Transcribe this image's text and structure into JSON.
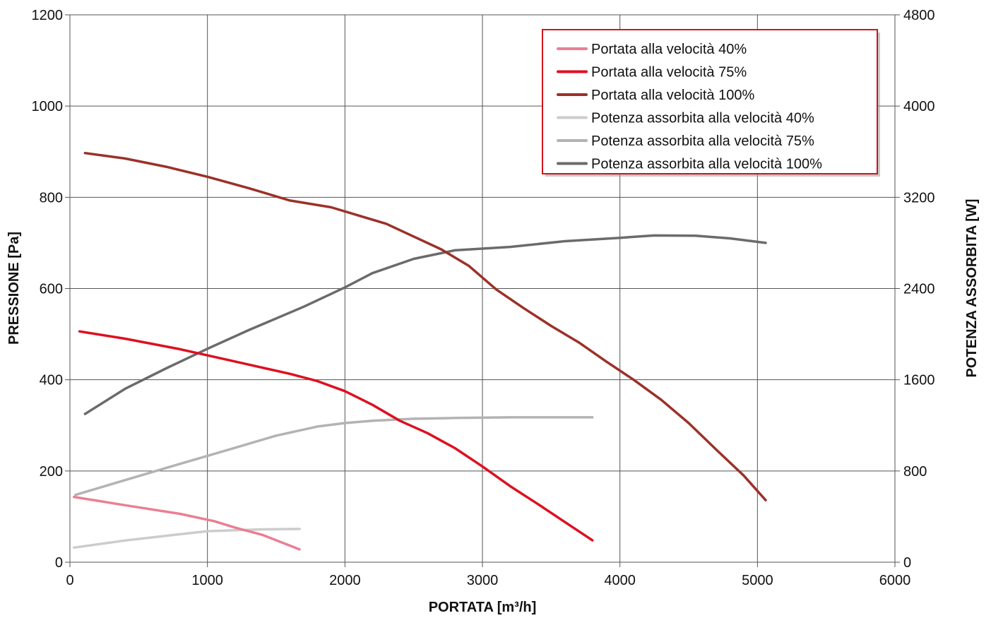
{
  "chart_data": {
    "type": "line",
    "xlabel": "PORTATA [m³/h]",
    "ylabel_left": "PRESSIONE [Pa]",
    "ylabel_right": "POTENZA ASSORBITA [W]",
    "xlim": [
      0,
      6000
    ],
    "ylim_left": [
      0,
      1200
    ],
    "ylim_right": [
      0,
      4800
    ],
    "x_ticks": [
      0,
      1000,
      2000,
      3000,
      4000,
      5000,
      6000
    ],
    "y_left_ticks": [
      0,
      200,
      400,
      600,
      800,
      1000,
      1200
    ],
    "y_right_ticks": [
      0,
      800,
      1600,
      2400,
      3200,
      4000,
      4800
    ],
    "grid": true,
    "legend_position": "top-right",
    "series": [
      {
        "name": "Portata alla velocità 40%",
        "axis": "left",
        "color": "#ea7f94",
        "points": [
          [
            30,
            143
          ],
          [
            400,
            125
          ],
          [
            800,
            106
          ],
          [
            1050,
            90
          ],
          [
            1200,
            76
          ],
          [
            1400,
            60
          ],
          [
            1670,
            28
          ]
        ]
      },
      {
        "name": "Portata alla velocità 75%",
        "axis": "left",
        "color": "#dd1020",
        "points": [
          [
            70,
            506
          ],
          [
            400,
            490
          ],
          [
            800,
            467
          ],
          [
            1200,
            440
          ],
          [
            1600,
            413
          ],
          [
            1800,
            397
          ],
          [
            2000,
            375
          ],
          [
            2200,
            345
          ],
          [
            2400,
            310
          ],
          [
            2600,
            283
          ],
          [
            2800,
            250
          ],
          [
            3000,
            210
          ],
          [
            3200,
            167
          ],
          [
            3400,
            128
          ],
          [
            3600,
            88
          ],
          [
            3800,
            48
          ]
        ]
      },
      {
        "name": "Portata alla velocità 100%",
        "axis": "left",
        "color": "#9b3128",
        "points": [
          [
            110,
            897
          ],
          [
            400,
            885
          ],
          [
            700,
            867
          ],
          [
            1000,
            845
          ],
          [
            1300,
            820
          ],
          [
            1600,
            793
          ],
          [
            1900,
            778
          ],
          [
            2100,
            760
          ],
          [
            2300,
            742
          ],
          [
            2500,
            714
          ],
          [
            2700,
            686
          ],
          [
            2900,
            650
          ],
          [
            3100,
            598
          ],
          [
            3300,
            557
          ],
          [
            3500,
            518
          ],
          [
            3700,
            482
          ],
          [
            3900,
            440
          ],
          [
            4100,
            400
          ],
          [
            4300,
            356
          ],
          [
            4500,
            305
          ],
          [
            4700,
            247
          ],
          [
            4900,
            190
          ],
          [
            5060,
            136
          ]
        ]
      },
      {
        "name": "Potenza assorbita alla velocità 40%",
        "axis": "right",
        "color": "#cccccc",
        "points": [
          [
            30,
            128
          ],
          [
            400,
            190
          ],
          [
            800,
            245
          ],
          [
            1000,
            272
          ],
          [
            1200,
            280
          ],
          [
            1400,
            288
          ],
          [
            1670,
            292
          ]
        ]
      },
      {
        "name": "Potenza assorbita alla velocità 75%",
        "axis": "right",
        "color": "#b3b3b3",
        "points": [
          [
            40,
            590
          ],
          [
            400,
            720
          ],
          [
            800,
            862
          ],
          [
            1200,
            1003
          ],
          [
            1500,
            1110
          ],
          [
            1800,
            1190
          ],
          [
            2000,
            1220
          ],
          [
            2200,
            1240
          ],
          [
            2500,
            1258
          ],
          [
            2800,
            1265
          ],
          [
            3200,
            1270
          ],
          [
            3600,
            1270
          ],
          [
            3800,
            1270
          ]
        ]
      },
      {
        "name": "Potenza assorbita alla velocità 100%",
        "axis": "right",
        "color": "#6b6b6b",
        "points": [
          [
            110,
            1300
          ],
          [
            400,
            1520
          ],
          [
            700,
            1700
          ],
          [
            1000,
            1872
          ],
          [
            1300,
            2035
          ],
          [
            1700,
            2240
          ],
          [
            2000,
            2410
          ],
          [
            2200,
            2535
          ],
          [
            2500,
            2660
          ],
          [
            2800,
            2735
          ],
          [
            3200,
            2765
          ],
          [
            3600,
            2815
          ],
          [
            4000,
            2845
          ],
          [
            4250,
            2865
          ],
          [
            4550,
            2863
          ],
          [
            4800,
            2840
          ],
          [
            5060,
            2800
          ]
        ]
      }
    ]
  }
}
